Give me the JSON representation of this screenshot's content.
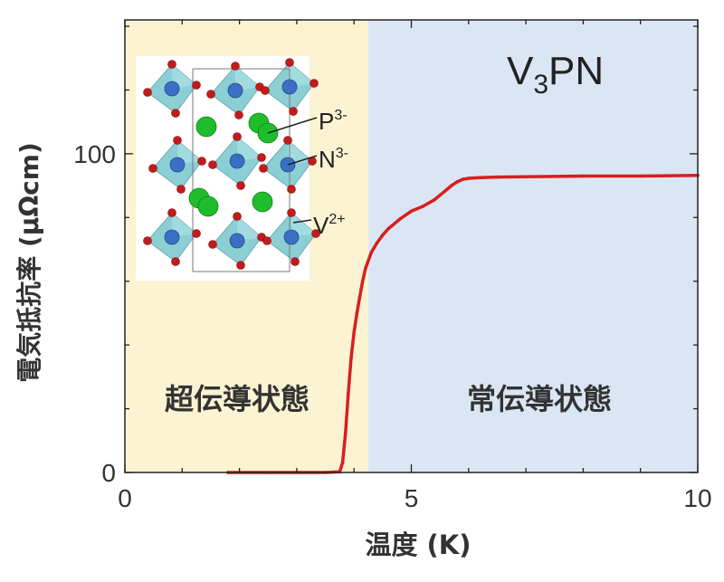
{
  "chart_data": {
    "type": "line",
    "xlabel": "温度 (K)",
    "ylabel": "電気抵抗率 (μΩcm)",
    "xlim": [
      0,
      10
    ],
    "ylim": [
      0,
      142
    ],
    "x_ticks": [
      "0",
      "5",
      "10"
    ],
    "y_ticks": [
      "0",
      "100"
    ],
    "grid": false,
    "regions": [
      {
        "label": "超伝導状態",
        "x_from": 0,
        "x_to": 4.25,
        "color": "#fbf3d2"
      },
      {
        "label": "常伝導状態",
        "x_from": 4.25,
        "x_to": 10,
        "color": "#dbe6f4"
      }
    ],
    "annotations": {
      "compound": {
        "base": "V",
        "sub": "3",
        "rest": "PN"
      },
      "ions": [
        {
          "base": "P",
          "sup": "3-"
        },
        {
          "base": "N",
          "sup": "3-"
        },
        {
          "base": "V",
          "sup": "2+"
        }
      ]
    },
    "series": [
      {
        "color": "#d81e1e",
        "x": [
          1.8,
          2.5,
          3.0,
          3.5,
          3.75,
          3.8,
          3.85,
          3.9,
          3.95,
          4.0,
          4.05,
          4.1,
          4.15,
          4.2,
          4.3,
          4.4,
          4.5,
          4.6,
          4.8,
          5.0,
          5.2,
          5.4,
          5.5,
          5.6,
          5.7,
          5.8,
          5.9,
          6.0,
          6.2,
          6.5,
          7.0,
          8.0,
          9.0,
          10.0
        ],
        "y": [
          0,
          0,
          0,
          0,
          0.2,
          3,
          12,
          25,
          36,
          44,
          50,
          55,
          60,
          64,
          69,
          72,
          74.5,
          76.5,
          79.5,
          82,
          83.5,
          85.5,
          87,
          88.5,
          90,
          91.2,
          92,
          92.3,
          92.5,
          92.7,
          92.8,
          93,
          93,
          93.2
        ]
      }
    ]
  },
  "colors": {
    "axis": "#222222",
    "text": "#333333",
    "curve": "#d81e1e",
    "octahedron": "#7fcad0",
    "vanadium": "#3b6fc4",
    "nitrogen": "#c41a1a",
    "phosphorus": "#1fbd2c"
  }
}
